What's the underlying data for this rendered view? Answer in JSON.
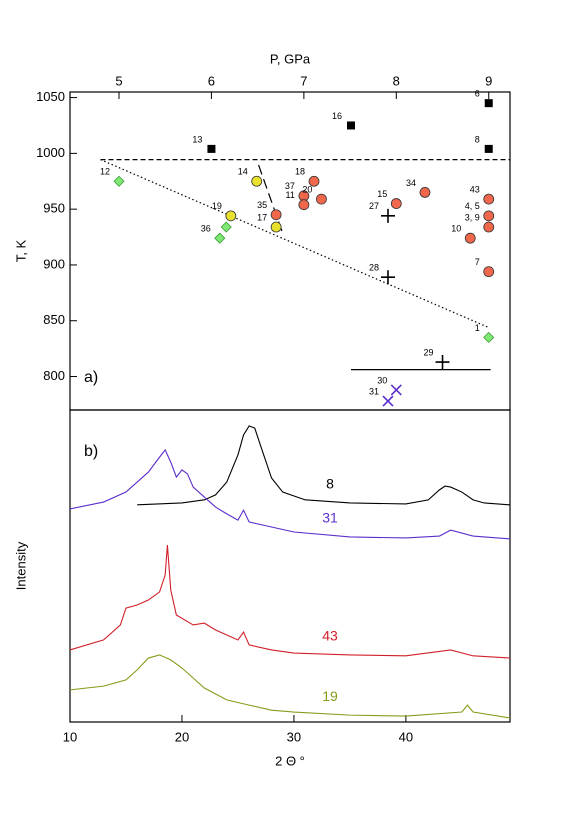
{
  "chart_data": [
    {
      "type": "scatter",
      "xlabel": "P, GPa",
      "ylabel": "T, K",
      "panel_label": "a)",
      "x_axis_side": "top",
      "xlim": [
        4.47,
        9.23
      ],
      "ylim": [
        770,
        1055
      ],
      "xticks": [
        5,
        6,
        7,
        8,
        9
      ],
      "yticks": [
        800,
        850,
        900,
        950,
        1000,
        1050
      ],
      "series": [
        {
          "marker": "square",
          "color": "#000000",
          "x": [
            9.0,
            9.0,
            6.0,
            7.51
          ],
          "y": [
            1045,
            1004,
            1004,
            1025
          ],
          "labels": [
            "6",
            "8",
            "13",
            "16"
          ]
        },
        {
          "marker": "circle",
          "color": "#f0674b",
          "x": [
            7.11,
            7.0,
            7.0,
            7.19,
            6.7,
            8.0,
            8.31,
            9.0,
            9.0,
            9.0,
            8.8,
            9.0
          ],
          "y": [
            975,
            962,
            954,
            959,
            945,
            955,
            965,
            959,
            944,
            934,
            924,
            894
          ],
          "labels": [
            "18",
            "37",
            "11",
            "20",
            "35",
            "15",
            "34",
            "43",
            "4, 5",
            "3, 9",
            "10",
            "7"
          ]
        },
        {
          "marker": "circle",
          "color": "#e9e22c",
          "x": [
            6.49,
            6.21,
            6.7
          ],
          "y": [
            975,
            944,
            934
          ],
          "labels": [
            "14",
            "19",
            "17"
          ]
        },
        {
          "marker": "diamond",
          "color": "#7ee873",
          "x": [
            5.0,
            6.16,
            6.09,
            9.0
          ],
          "y": [
            975,
            934,
            924,
            835
          ],
          "labels": [
            "12",
            null,
            "36",
            "1"
          ]
        },
        {
          "marker": "plus",
          "color": "#000000",
          "x": [
            7.91,
            7.91,
            8.5
          ],
          "y": [
            944,
            889,
            813
          ],
          "labels": [
            "27",
            "28",
            "29"
          ]
        },
        {
          "marker": "cross",
          "color": "#5a2ecc",
          "x": [
            8.0,
            7.91
          ],
          "y": [
            788,
            778
          ],
          "labels": [
            "30",
            "31"
          ]
        }
      ],
      "lines": [
        {
          "dash": "dashed",
          "x": [
            4.8,
            9.23
          ],
          "y": [
            994.4,
            994.4
          ]
        },
        {
          "dash": "dotted",
          "x": [
            4.8,
            9.0
          ],
          "y": [
            994.4,
            843.9
          ]
        },
        {
          "dash": "longdash",
          "x": [
            6.51,
            6.77
          ],
          "y": [
            989.6,
            928.7
          ]
        },
        {
          "dash": "solid",
          "x": [
            7.51,
            9.02
          ],
          "y": [
            806.2,
            806.2
          ]
        }
      ]
    },
    {
      "type": "line",
      "xlabel": "2 Θ °",
      "ylabel": "Intensity",
      "panel_label": "b)",
      "x_axis_side": "bottom",
      "xlim": [
        10,
        49.3
      ],
      "ylim": [
        0,
        100
      ],
      "xticks": [
        10,
        20,
        30,
        40
      ],
      "series": [
        {
          "name": "8",
          "color": "#000000",
          "x": [
            16,
            20,
            22,
            23,
            24,
            25,
            25.5,
            26,
            26.5,
            27,
            28,
            29,
            31,
            35,
            40,
            42,
            43,
            43.5,
            44,
            45,
            46,
            47,
            49.3
          ],
          "values": [
            69.6,
            70.2,
            71.2,
            72.8,
            76.9,
            85.6,
            92.0,
            94.9,
            94.2,
            88.8,
            78.2,
            73.7,
            71.2,
            70.2,
            69.9,
            71.2,
            74.4,
            75.6,
            75.3,
            73.7,
            71.2,
            70.2,
            69.6
          ]
        },
        {
          "name": "31",
          "color": "#5a2ecc",
          "x": [
            10,
            13,
            15,
            16,
            17,
            18,
            18.5,
            19,
            19.5,
            20,
            20.5,
            21,
            22,
            23,
            24,
            25,
            25.5,
            26,
            28,
            30,
            35,
            40,
            43,
            44,
            46,
            49.3
          ],
          "values": [
            68.3,
            70.5,
            73.7,
            76.9,
            80.1,
            84.9,
            87.2,
            83.3,
            78.5,
            80.8,
            79.5,
            75.3,
            72.1,
            68.9,
            66.7,
            64.7,
            67.9,
            64.1,
            62.5,
            60.9,
            59.3,
            59.0,
            59.6,
            61.5,
            59.6,
            58.7
          ]
        },
        {
          "name": "43",
          "color": "#d0202a",
          "x": [
            10,
            13,
            14.5,
            15,
            16,
            17,
            18,
            18.5,
            18.7,
            19,
            19.5,
            21,
            22,
            23,
            25,
            25.5,
            26,
            28,
            30,
            35,
            40,
            44,
            46,
            49.3
          ],
          "values": [
            23.1,
            26.3,
            31.1,
            36.5,
            37.5,
            39.1,
            41.7,
            47.1,
            56.7,
            42.3,
            34.3,
            31.1,
            31.7,
            29.5,
            26.3,
            28.8,
            24.7,
            23.1,
            22.1,
            21.5,
            21.2,
            23.1,
            21.2,
            20.5
          ]
        },
        {
          "name": "19",
          "color": "#8a9a1a",
          "x": [
            10,
            13,
            15,
            16,
            17,
            18,
            19,
            20,
            21,
            22,
            24,
            26,
            28,
            30,
            35,
            40,
            45,
            45.5,
            46,
            49.3
          ],
          "values": [
            10.3,
            11.5,
            13.5,
            16.7,
            20.5,
            21.5,
            19.9,
            17.3,
            14.1,
            10.9,
            7.1,
            5.4,
            3.8,
            3.2,
            2.2,
            1.9,
            3.2,
            5.4,
            3.2,
            1.3
          ]
        }
      ]
    }
  ]
}
